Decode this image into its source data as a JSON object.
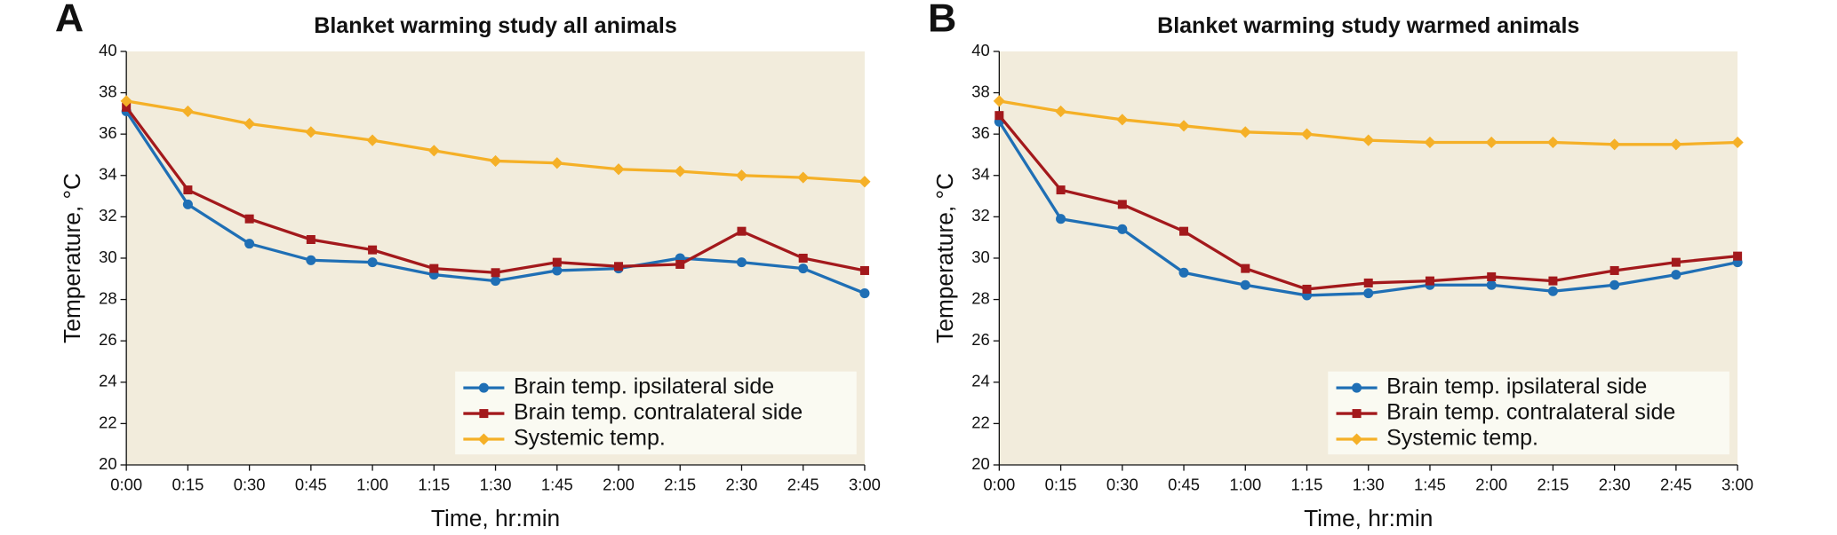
{
  "chart_data": [
    {
      "type": "line",
      "label": "A",
      "title": "Blanket warming study all animals",
      "xlabel": "Time, hr:min",
      "ylabel": "Temperature, °C",
      "categories": [
        "0:00",
        "0:15",
        "0:30",
        "0:45",
        "1:00",
        "1:15",
        "1:30",
        "1:45",
        "2:00",
        "2:15",
        "2:30",
        "2:45",
        "3:00"
      ],
      "ylim": [
        20,
        40
      ],
      "yticks": [
        20,
        22,
        24,
        26,
        28,
        30,
        32,
        34,
        36,
        38,
        40
      ],
      "legend": "lower right",
      "background": "#f2ecdc",
      "series": [
        {
          "name": "Brain temp. ipsilateral side",
          "color": "#1f6fb5",
          "marker": "circle",
          "values": [
            37.1,
            32.6,
            30.7,
            29.9,
            29.8,
            29.2,
            28.9,
            29.4,
            29.5,
            30.0,
            29.8,
            29.5,
            28.3
          ]
        },
        {
          "name": "Brain temp. contralateral side",
          "color": "#a3191c",
          "marker": "square",
          "values": [
            37.3,
            33.3,
            31.9,
            30.9,
            30.4,
            29.5,
            29.3,
            29.8,
            29.6,
            29.7,
            31.3,
            30.0,
            29.4
          ]
        },
        {
          "name": "Systemic temp.",
          "color": "#f5b027",
          "marker": "diamond",
          "values": [
            37.6,
            37.1,
            36.5,
            36.1,
            35.7,
            35.2,
            34.7,
            34.6,
            34.3,
            34.2,
            34.0,
            33.9,
            33.7
          ]
        }
      ]
    },
    {
      "type": "line",
      "label": "B",
      "title": "Blanket warming study warmed animals",
      "xlabel": "Time, hr:min",
      "ylabel": "Temperature, °C",
      "categories": [
        "0:00",
        "0:15",
        "0:30",
        "0:45",
        "1:00",
        "1:15",
        "1:30",
        "1:45",
        "2:00",
        "2:15",
        "2:30",
        "2:45",
        "3:00"
      ],
      "ylim": [
        20,
        40
      ],
      "yticks": [
        20,
        22,
        24,
        26,
        28,
        30,
        32,
        34,
        36,
        38,
        40
      ],
      "legend": "lower right",
      "background": "#f2ecdc",
      "series": [
        {
          "name": "Brain temp. ipsilateral side",
          "color": "#1f6fb5",
          "marker": "circle",
          "values": [
            36.6,
            31.9,
            31.4,
            29.3,
            28.7,
            28.2,
            28.3,
            28.7,
            28.7,
            28.4,
            28.7,
            29.2,
            29.8
          ]
        },
        {
          "name": "Brain temp. contralateral side",
          "color": "#a3191c",
          "marker": "square",
          "values": [
            36.9,
            33.3,
            32.6,
            31.3,
            29.5,
            28.5,
            28.8,
            28.9,
            29.1,
            28.9,
            29.4,
            29.8,
            30.1
          ]
        },
        {
          "name": "Systemic temp.",
          "color": "#f5b027",
          "marker": "diamond",
          "values": [
            37.6,
            37.1,
            36.7,
            36.4,
            36.1,
            36.0,
            35.7,
            35.6,
            35.6,
            35.6,
            35.5,
            35.5,
            35.6
          ]
        }
      ]
    }
  ]
}
